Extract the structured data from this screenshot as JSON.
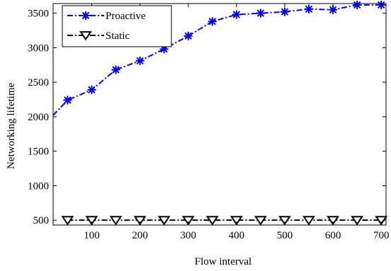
{
  "chart_data": {
    "type": "line",
    "title": "",
    "xlabel": "Flow interval",
    "ylabel": "Networking lifetime",
    "xlim": [
      20,
      710
    ],
    "ylim": [
      430,
      3640
    ],
    "xticks": [
      100,
      200,
      300,
      400,
      500,
      600,
      700
    ],
    "xtick_labels": [
      "100",
      "200",
      "300",
      "400",
      "500",
      "600",
      "700"
    ],
    "yticks": [
      500,
      1000,
      1500,
      2000,
      2500,
      3000,
      3500
    ],
    "ytick_labels": [
      "500",
      "1000",
      "1500",
      "2000",
      "2500",
      "3000",
      "3500"
    ],
    "grid": false,
    "legend_position": "top-left",
    "series": [
      {
        "name": "Proactive",
        "color": "#0000ff",
        "line_style": "dash-dot",
        "marker": "asterisk",
        "x": [
          20,
          50,
          100,
          150,
          200,
          250,
          300,
          350,
          400,
          450,
          500,
          550,
          600,
          650,
          700
        ],
        "y": [
          2020,
          2240,
          2390,
          2680,
          2810,
          2980,
          3170,
          3380,
          3480,
          3500,
          3520,
          3560,
          3550,
          3620,
          3620
        ]
      },
      {
        "name": "Static",
        "color": "#000000",
        "line_style": "dash-dot",
        "marker": "triangle-down",
        "x": [
          50,
          100,
          150,
          200,
          250,
          300,
          350,
          400,
          450,
          500,
          550,
          600,
          650,
          700
        ],
        "y": [
          500,
          500,
          500,
          500,
          500,
          500,
          500,
          500,
          500,
          500,
          500,
          500,
          500,
          500
        ]
      }
    ]
  }
}
